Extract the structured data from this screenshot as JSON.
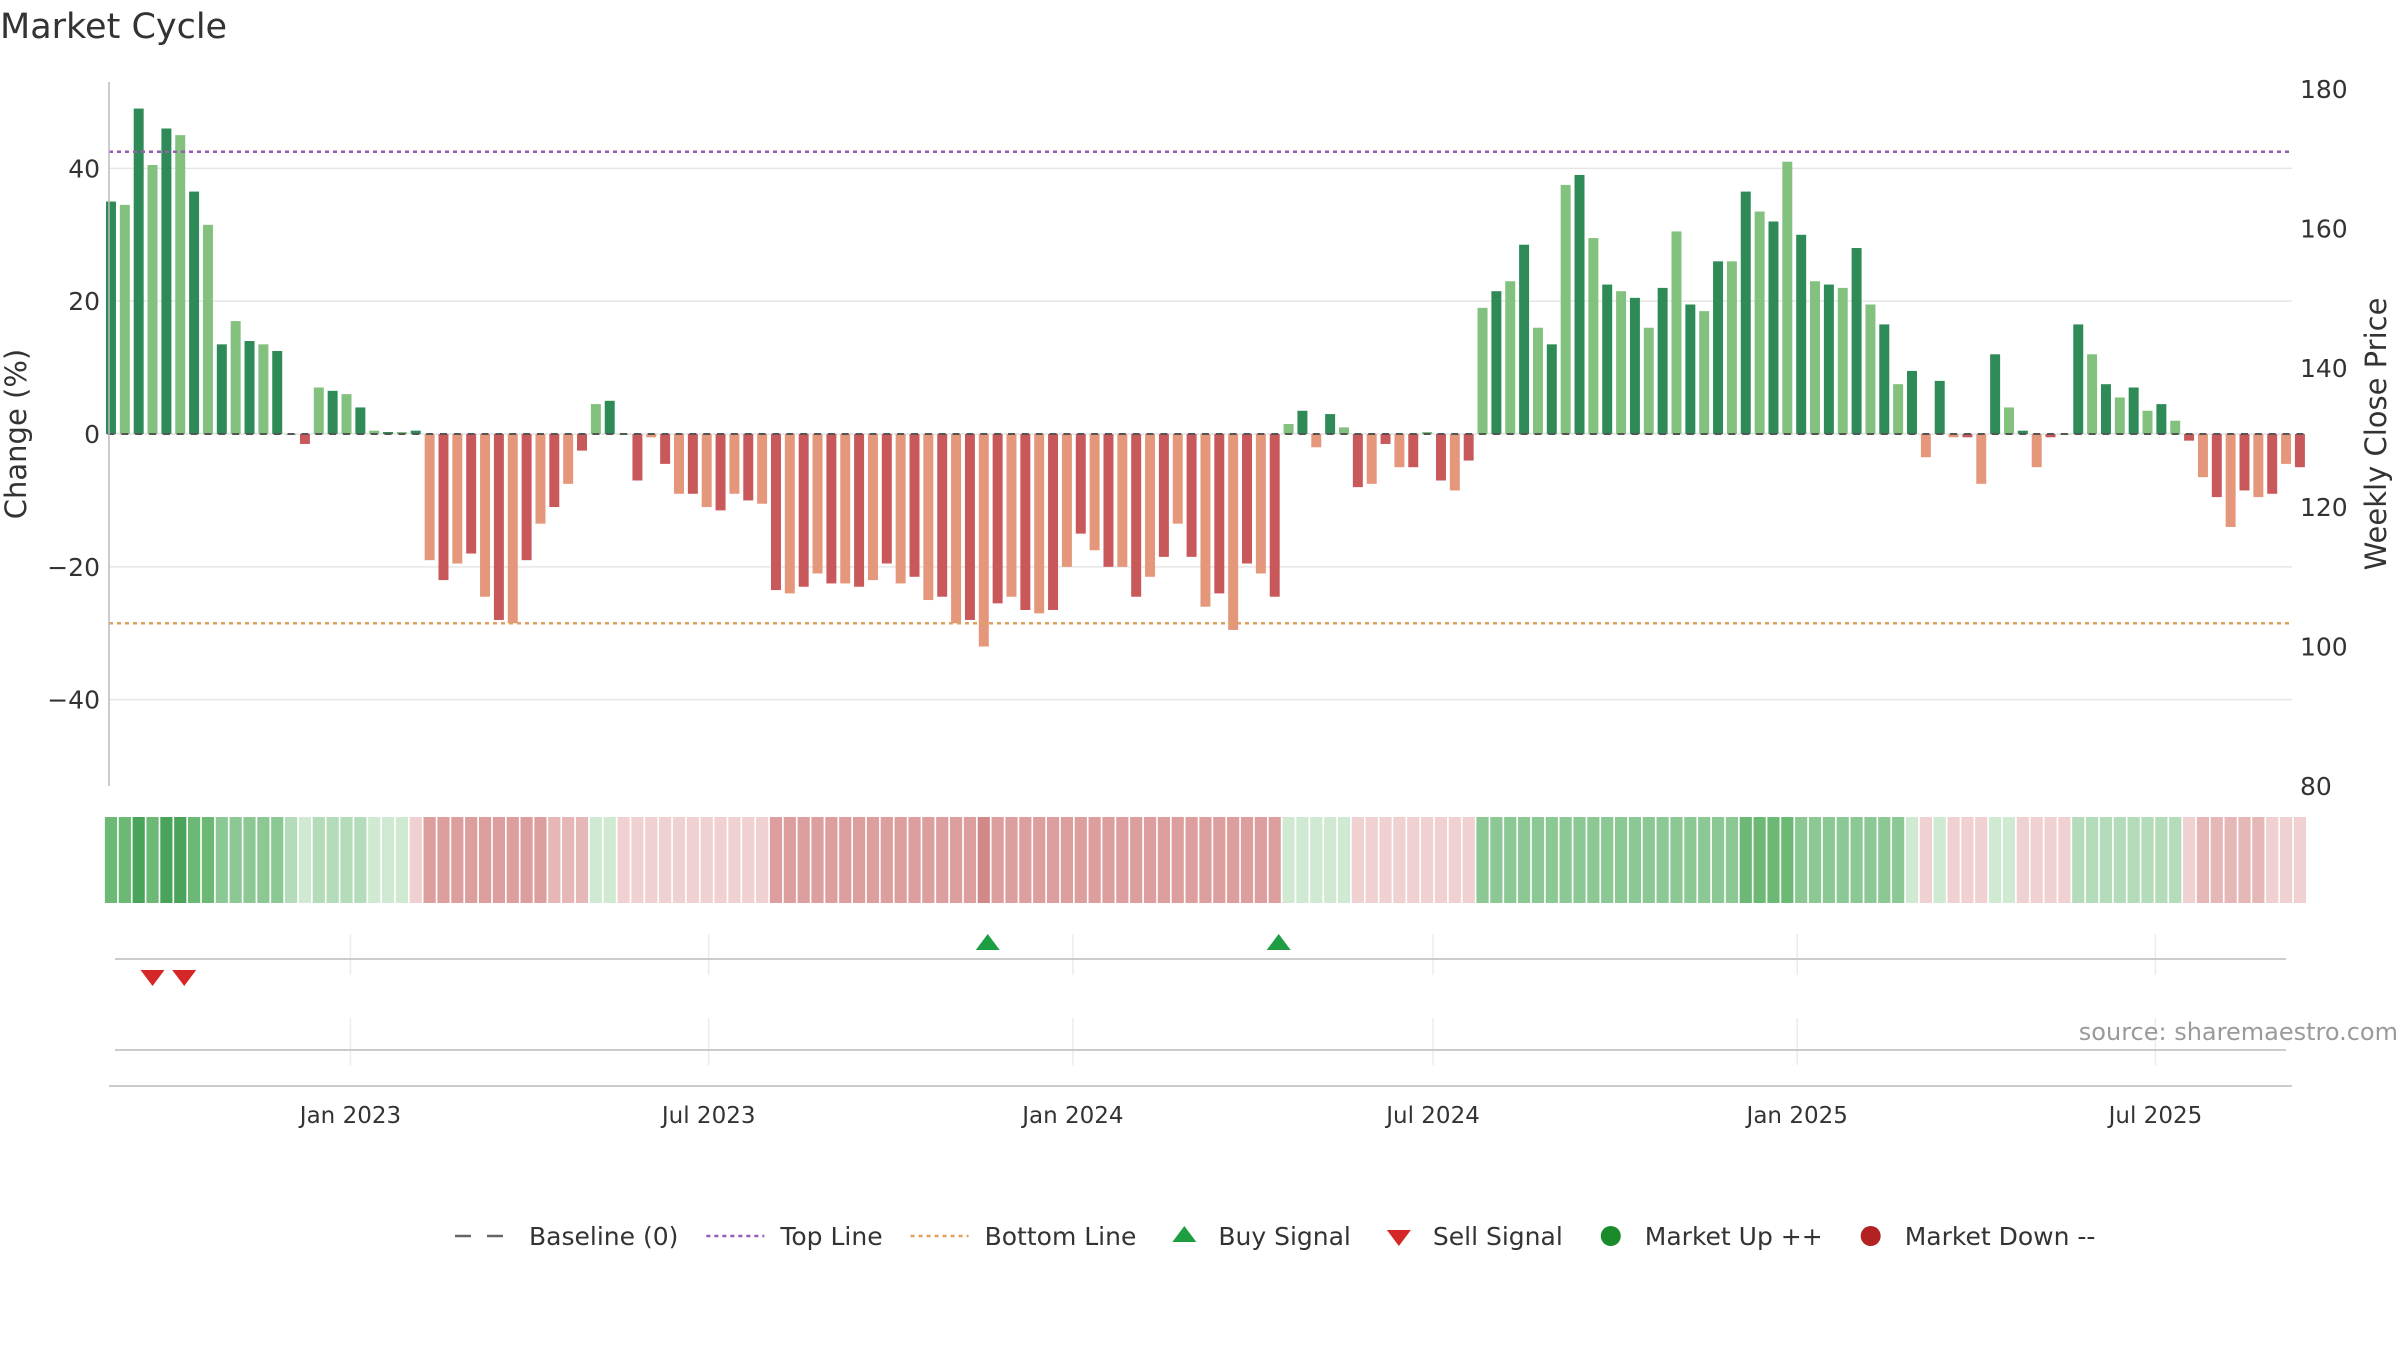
{
  "chart_data": {
    "type": "bar",
    "title": "Market Cycle",
    "ylabel_left": "Change (%)",
    "ylabel_right": "Weekly Close Price",
    "left_ticks": [
      -40,
      -20,
      0,
      20,
      40
    ],
    "left_ylim": [
      -53,
      53
    ],
    "right_ticks": [
      80,
      100,
      120,
      140,
      160,
      180
    ],
    "right_ylim": [
      80,
      181
    ],
    "top_line": 42.5,
    "bottom_line": -28.5,
    "x_range": [
      "2022-09-01",
      "2025-09-08"
    ],
    "x_ticks": [
      {
        "date": "2023-01-01",
        "label": "Jan 2023"
      },
      {
        "date": "2023-07-01",
        "label": "Jul 2023"
      },
      {
        "date": "2024-01-01",
        "label": "Jan 2024"
      },
      {
        "date": "2024-07-01",
        "label": "Jul 2024"
      },
      {
        "date": "2025-01-01",
        "label": "Jan 2025"
      },
      {
        "date": "2025-07-01",
        "label": "Jul 2025"
      }
    ],
    "start_week": "2022-09-02",
    "week_days": 7,
    "values": [
      35,
      34.5,
      49,
      40.5,
      46,
      45,
      36.5,
      31.5,
      13.5,
      17,
      14,
      13.5,
      12.5,
      0,
      -1.5,
      7,
      6.5,
      6,
      4,
      0.5,
      0.3,
      0.3,
      0.5,
      -19,
      -22,
      -19.5,
      -18,
      -24.5,
      -28,
      -28.5,
      -19,
      -13.5,
      -11,
      -7.5,
      -2.5,
      4.5,
      5,
      0,
      -7,
      -0.5,
      -4.5,
      -9,
      -9,
      -11,
      -11.5,
      -9,
      -10,
      -10.5,
      -23.5,
      -24,
      -23,
      -21,
      -22.5,
      -22.5,
      -23,
      -22,
      -19.5,
      -22.5,
      -21.5,
      -25,
      -24.5,
      -28.5,
      -28,
      -32,
      -25.5,
      -24.5,
      -26.5,
      -27,
      -26.5,
      -20,
      -15,
      -17.5,
      -20,
      -20,
      -24.5,
      -21.5,
      -18.5,
      -13.5,
      -18.5,
      -26,
      -24,
      -29.5,
      -19.5,
      -21,
      -24.5,
      1.5,
      3.5,
      -2,
      3,
      1,
      -8,
      -7.5,
      -1.5,
      -5,
      -5,
      0.3,
      -7,
      -8.5,
      -4,
      19,
      21.5,
      23,
      28.5,
      16,
      13.5,
      37.5,
      39,
      29.5,
      22.5,
      21.5,
      20.5,
      16,
      22,
      30.5,
      19.5,
      18.5,
      26,
      26,
      36.5,
      33.5,
      32,
      41,
      30,
      23,
      22.5,
      22,
      28,
      19.5,
      16.5,
      7.5,
      9.5,
      -3.5,
      8,
      -0.5,
      -0.5,
      -7.5,
      12,
      4,
      0.5,
      -5,
      -0.5,
      0,
      16.5,
      12,
      7.5,
      5.5,
      7,
      3.5,
      4.5,
      2,
      -1,
      -6.5,
      -9.5,
      -14,
      -8.5,
      -9.5,
      -9,
      -4.5,
      -5
    ],
    "shade_levels": [
      4,
      4,
      5,
      4,
      5,
      5,
      4,
      4,
      3,
      3,
      3,
      3,
      3,
      2,
      1,
      2,
      2,
      2,
      2,
      1,
      1,
      1,
      0,
      -3,
      -3,
      -3,
      -3,
      -3,
      -3,
      -3,
      -3,
      -3,
      -2,
      -2,
      -2,
      1,
      1,
      -1,
      -1,
      -1,
      -1,
      -1,
      -1,
      -1,
      -1,
      -1,
      -1,
      -1,
      -3,
      -3,
      -3,
      -3,
      -3,
      -3,
      -3,
      -3,
      -3,
      -3,
      -3,
      -3,
      -3,
      -3,
      -3,
      -4,
      -3,
      -3,
      -3,
      -3,
      -3,
      -3,
      -3,
      -3,
      -3,
      -3,
      -3,
      -3,
      -3,
      -3,
      -3,
      -3,
      -3,
      -3,
      -3,
      -3,
      -3,
      1,
      1,
      1,
      1,
      1,
      -1,
      -1,
      -1,
      -1,
      -1,
      -1,
      -1,
      -1,
      -1,
      3,
      3,
      3,
      3,
      3,
      3,
      3,
      3,
      3,
      3,
      3,
      3,
      3,
      3,
      3,
      3,
      3,
      3,
      3,
      4,
      4,
      4,
      4,
      3,
      3,
      3,
      3,
      3,
      3,
      3,
      3,
      1,
      -1,
      1,
      -1,
      -1,
      -1,
      1,
      1,
      -1,
      -1,
      -1,
      -1,
      2,
      2,
      2,
      2,
      2,
      2,
      2,
      2,
      -1,
      -2,
      -2,
      -2,
      -2,
      -2,
      -1,
      -1,
      -1
    ],
    "buy_signals": [
      "2023-11-19",
      "2024-04-14"
    ],
    "sell_signals": [
      "2022-09-23",
      "2022-10-09"
    ],
    "colors": {
      "up_strong": "#2e8b57",
      "up_light": "#82c17e",
      "down_strong": "#c9585b",
      "down_light": "#e4977a",
      "top_line": "#9b59b6",
      "bottom_line": "#e0a060",
      "buy": "#1e9e43",
      "sell": "#d62728",
      "market_up": "#1a8a2a",
      "market_down": "#b22222"
    },
    "legend": [
      {
        "key": "baseline",
        "label": "Baseline (0)"
      },
      {
        "key": "top",
        "label": "Top Line"
      },
      {
        "key": "bottom",
        "label": "Bottom Line"
      },
      {
        "key": "buy",
        "label": "Buy Signal"
      },
      {
        "key": "sell",
        "label": "Sell Signal"
      },
      {
        "key": "up",
        "label": "Market Up ++"
      },
      {
        "key": "down",
        "label": "Market Down --"
      }
    ],
    "legend_position": "bottom-center",
    "source": "source: sharemaestro.com"
  }
}
